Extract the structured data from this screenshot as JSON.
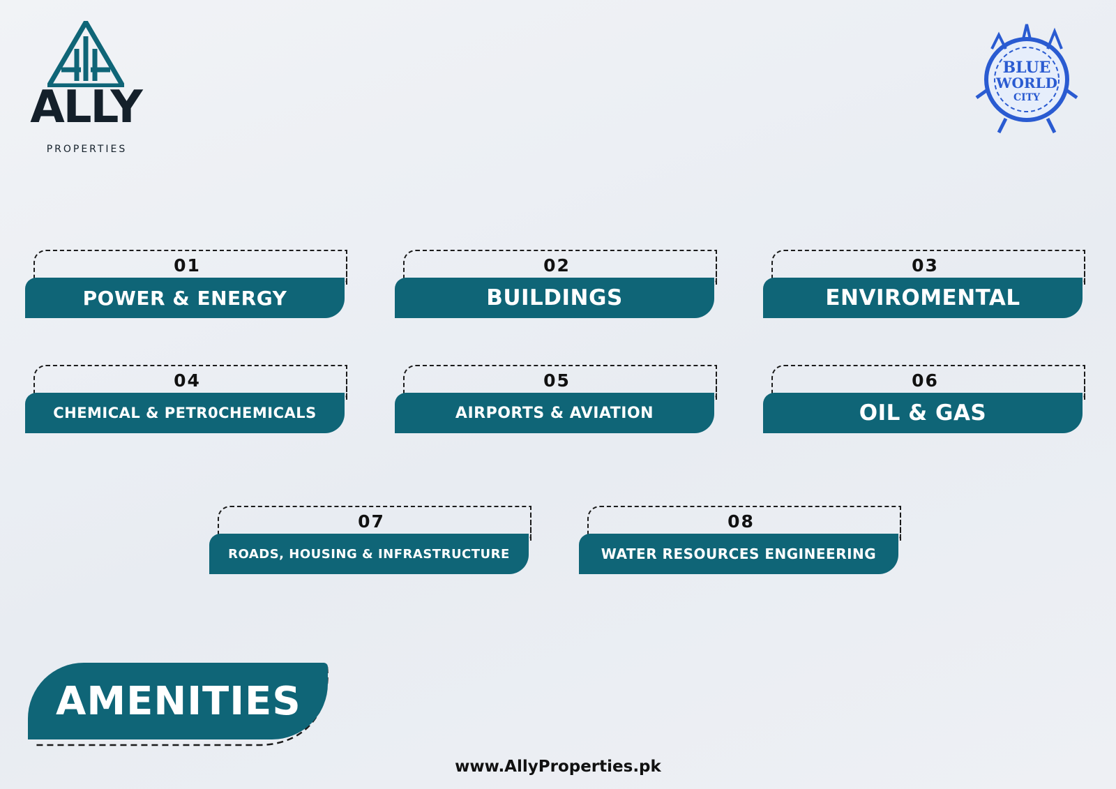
{
  "header": {
    "brand_word": "ALLY",
    "brand_sub": "PROPERTIES",
    "partner_logo_line1": "BLUE",
    "partner_logo_line2": "WORLD",
    "partner_logo_line3": "CITY"
  },
  "colors": {
    "accent": "#0f6577",
    "text": "#111111"
  },
  "cards": [
    {
      "number": "01",
      "label": "POWER & ENERGY"
    },
    {
      "number": "02",
      "label": "BUILDINGS"
    },
    {
      "number": "03",
      "label": "ENVIROMENTAL"
    },
    {
      "number": "04",
      "label": "CHEMICAL & PETR0CHEMICALS"
    },
    {
      "number": "05",
      "label": "AIRPORTS & AVIATION"
    },
    {
      "number": "06",
      "label": "OIL & GAS"
    },
    {
      "number": "07",
      "label": "ROADS, HOUSING & INFRASTRUCTURE"
    },
    {
      "number": "08",
      "label": "WATER RESOURCES ENGINEERING"
    }
  ],
  "section_title": "AMENITIES",
  "footer_url": "www.AllyProperties.pk"
}
